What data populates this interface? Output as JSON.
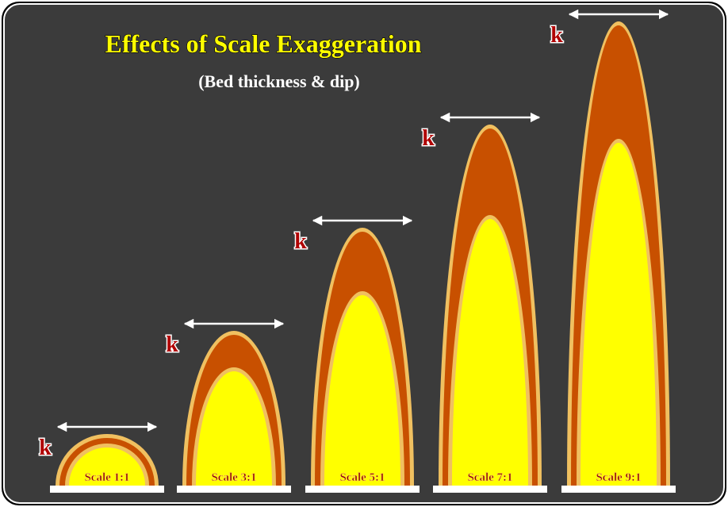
{
  "header": {
    "title": "Effects of Scale Exaggeration",
    "subtitle": "(Bed thickness & dip)"
  },
  "arches": [
    {
      "marker": "k",
      "label": "Scale 1:1"
    },
    {
      "marker": "k",
      "label": "Scale 3:1"
    },
    {
      "marker": "k",
      "label": "Scale 5:1"
    },
    {
      "marker": "k",
      "label": "Scale 7:1"
    },
    {
      "marker": "k",
      "label": "Scale 9:1"
    }
  ]
}
